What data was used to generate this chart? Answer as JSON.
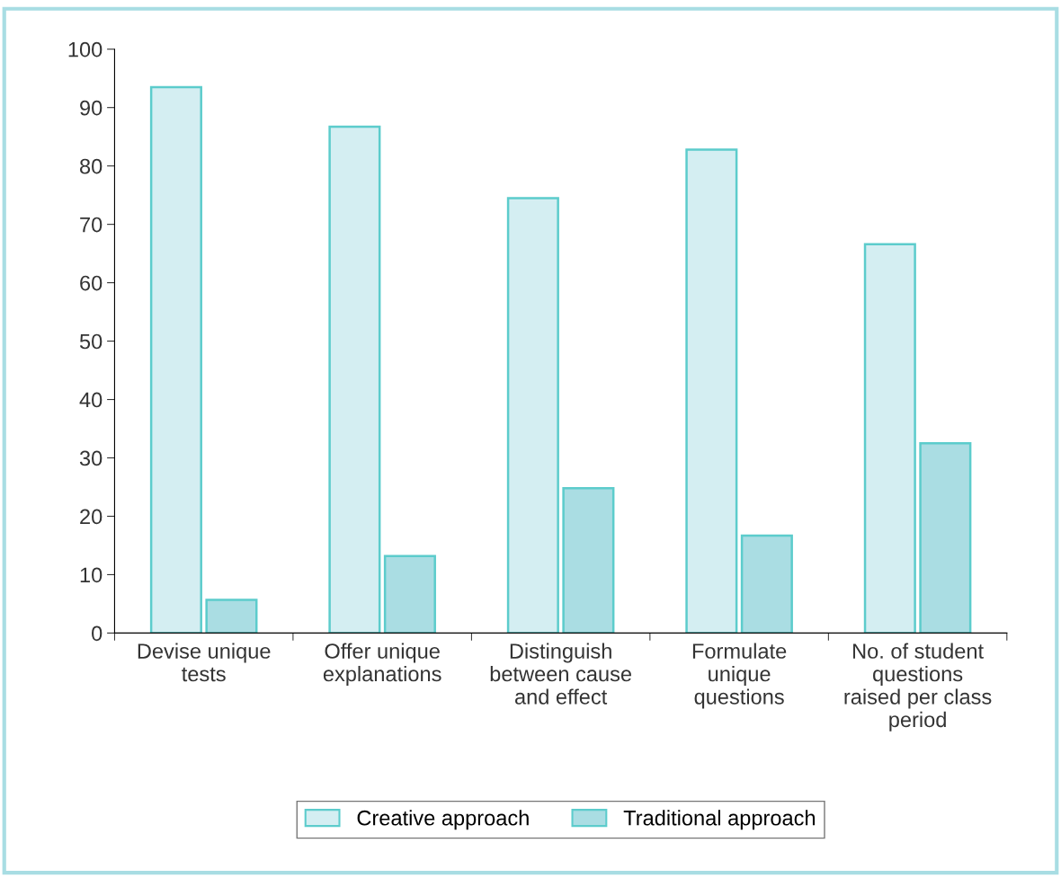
{
  "chart_data": {
    "type": "bar",
    "categories": [
      "Devise unique\ntests",
      "Offer unique\nexplanations",
      "Distinguish\nbetween cause\nand effect",
      "Formulate\nunique\nquestions",
      "No. of student\nquestions\nraised per class\nperiod"
    ],
    "series": [
      {
        "name": "Creative approach",
        "color": "#d4eef2",
        "values": [
          93.5,
          86.7,
          74.5,
          82.8,
          66.6
        ]
      },
      {
        "name": "Traditional approach",
        "color": "#aadde3",
        "values": [
          5.7,
          13.2,
          24.8,
          16.7,
          32.5
        ]
      }
    ],
    "ylim": [
      0,
      100
    ],
    "yticks": [
      0,
      10,
      20,
      30,
      40,
      50,
      60,
      70,
      80,
      90,
      100
    ],
    "grid": false,
    "legend": "bottom"
  }
}
